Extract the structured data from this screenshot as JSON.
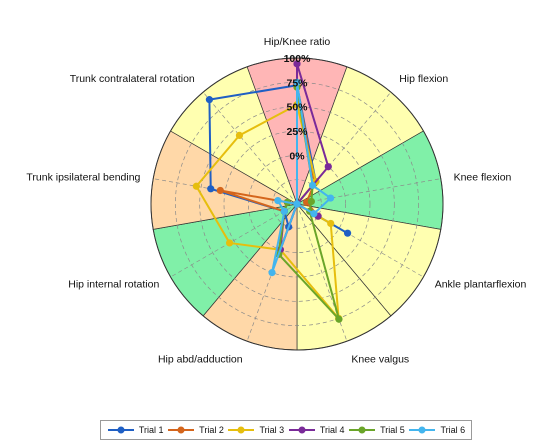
{
  "chart_data": {
    "type": "radar",
    "title": "",
    "axes": [
      "Hip/Knee ratio",
      "Hip flexion",
      "Knee flexion",
      "Ankle plantarflexion",
      "Knee valgus",
      "Hip abd/adduction",
      "Hip internal rotation",
      "Trunk ipsilateral bending",
      "Trunk contralateral rotation"
    ],
    "radial_ticks": [
      "0%",
      "25%",
      "50%",
      "75%",
      "100%"
    ],
    "radial_tick_values": [
      0,
      25,
      50,
      75,
      100
    ],
    "rlim": [
      -50,
      100
    ],
    "sector_colors": [
      "#ffb6b6",
      "#ffffb0",
      "#80f0a8",
      "#ffffb0",
      "#ffffb0",
      "#ffd8a8",
      "#80f0a8",
      "#ffd8a8",
      "#ffffb0"
    ],
    "series": [
      {
        "name": "Trial 1",
        "color": "#1f5fc4",
        "values": [
          72,
          -20,
          -50,
          10,
          -50,
          -25,
          -35,
          40,
          90
        ]
      },
      {
        "name": "Trial 2",
        "color": "#d4651c",
        "values": [
          72,
          -22,
          -40,
          -25,
          -50,
          5,
          -35,
          30,
          -50
        ]
      },
      {
        "name": "Trial 3",
        "color": "#e6be0e",
        "values": [
          52,
          -20,
          -50,
          -10,
          75,
          0,
          30,
          55,
          42
        ]
      },
      {
        "name": "Trial 4",
        "color": "#7a2a99",
        "values": [
          94,
          0,
          -50,
          -25,
          -50,
          0,
          -35,
          -40,
          -50
        ]
      },
      {
        "name": "Trial 5",
        "color": "#6aa529",
        "values": [
          70,
          -25,
          -35,
          -35,
          76,
          5,
          -35,
          -40,
          -50
        ]
      },
      {
        "name": "Trial 6",
        "color": "#43b5ee",
        "values": [
          75,
          -25,
          -15,
          -30,
          -50,
          25,
          -35,
          -30,
          -50
        ]
      }
    ],
    "legend_position": "bottom",
    "grid": true
  }
}
